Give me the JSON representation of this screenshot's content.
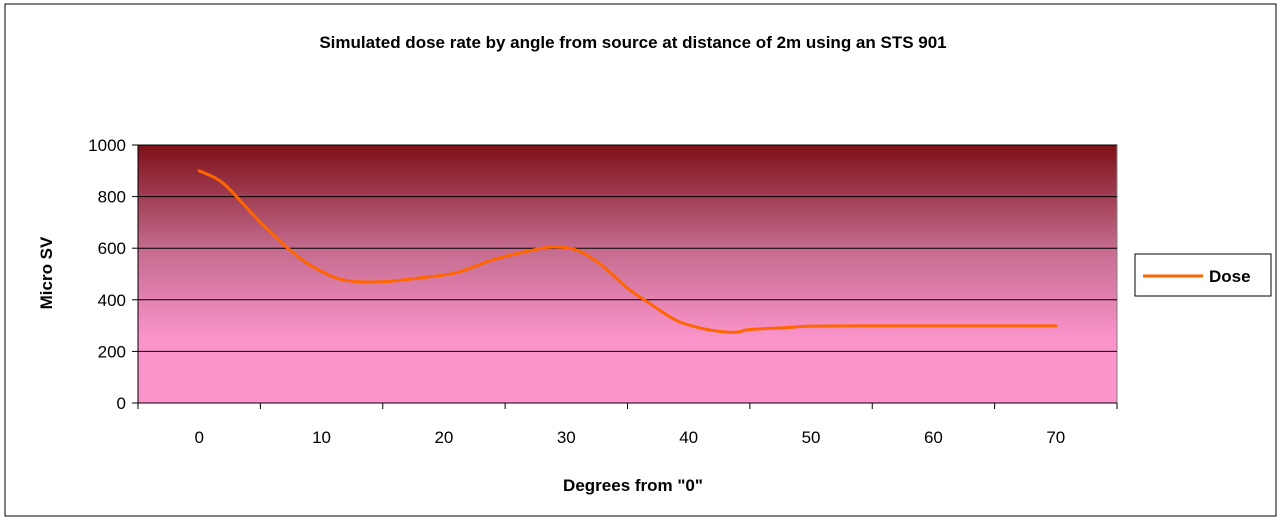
{
  "chart_data": {
    "type": "line",
    "title": "Simulated dose rate by angle from source at distance of 2m using an STS 901",
    "xlabel": "Degrees from \"0\"",
    "ylabel": "Micro SV",
    "x_ticks": [
      "0",
      "10",
      "20",
      "30",
      "40",
      "50",
      "60",
      "70"
    ],
    "y_ticks": [
      "0",
      "200",
      "400",
      "600",
      "800",
      "1000"
    ],
    "xlim": [
      -5,
      75
    ],
    "ylim": [
      0,
      1000
    ],
    "grid": "horizontal",
    "legend_placement": "right",
    "plot_gradient": [
      "#7d1018",
      "#fb94cb"
    ],
    "series": [
      {
        "name": "Dose",
        "color": "#ff6600",
        "x": [
          0,
          2,
          5,
          8,
          10,
          12,
          15,
          18,
          21,
          24,
          27,
          29,
          31,
          33,
          35,
          37,
          39,
          41,
          43,
          44,
          45,
          48,
          50,
          55,
          60,
          65,
          70
        ],
        "y": [
          900,
          850,
          700,
          570,
          510,
          475,
          470,
          485,
          505,
          555,
          590,
          605,
          590,
          530,
          445,
          380,
          320,
          290,
          275,
          275,
          285,
          292,
          298,
          299,
          299,
          299,
          299
        ]
      }
    ]
  }
}
